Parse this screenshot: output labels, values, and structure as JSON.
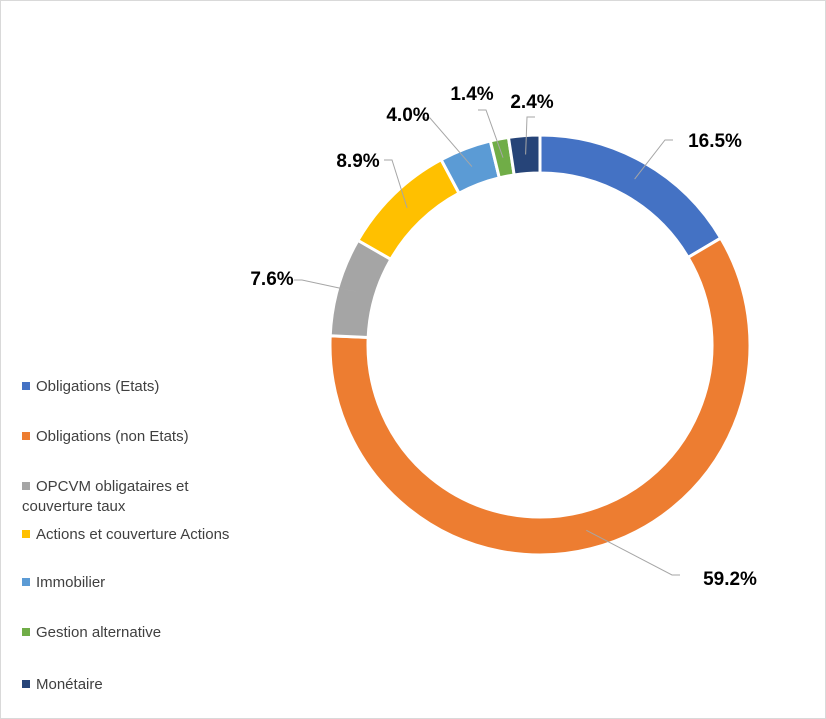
{
  "chart_data": {
    "type": "donut",
    "categories": [
      "Obligations (Etats)",
      "Obligations (non Etats)",
      "OPCVM obligataires et couverture taux",
      "Actions et couverture Actions",
      "Immobilier",
      "Gestion alternative",
      "Monétaire"
    ],
    "values": [
      16.5,
      59.2,
      7.6,
      8.9,
      4.0,
      1.4,
      2.4
    ],
    "value_labels": [
      "16.5%",
      "59.2%",
      "7.6%",
      "8.9%",
      "4.0%",
      "1.4%",
      "2.4%"
    ],
    "colors": [
      "#4472c4",
      "#ed7d31",
      "#a5a5a5",
      "#ffc000",
      "#5b9bd5",
      "#70ad47",
      "#264478"
    ],
    "legend": "left"
  }
}
